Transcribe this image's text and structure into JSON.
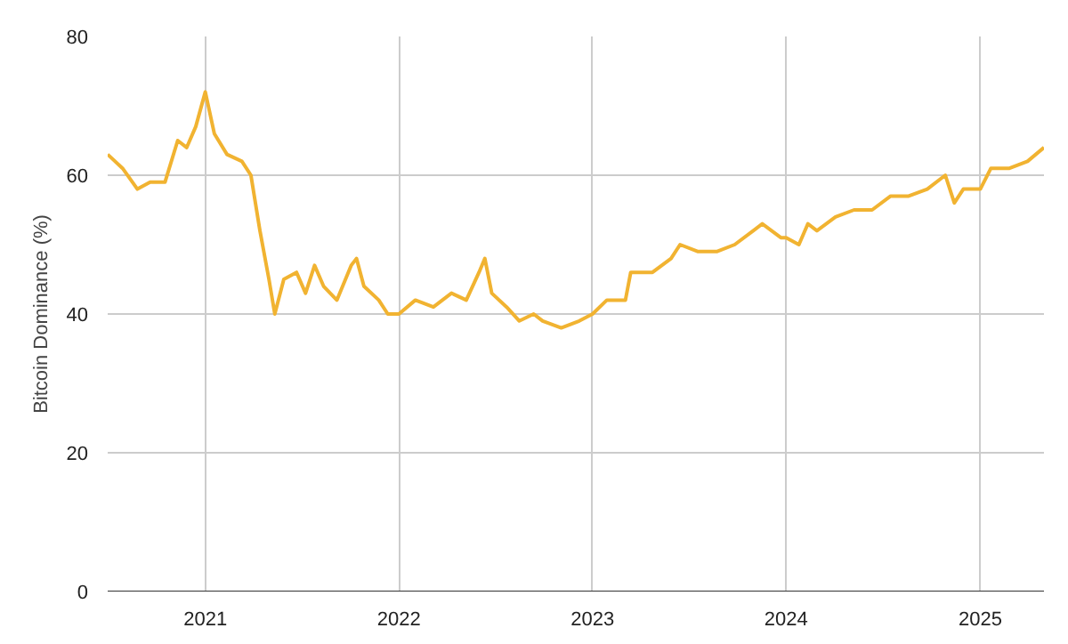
{
  "chart_data": {
    "type": "line",
    "ylabel": "Bitcoin Dominance (%)",
    "xlim": [
      "2020-07-01",
      "2025-05-01"
    ],
    "ylim": [
      0,
      80
    ],
    "yticks": [
      0,
      20,
      40,
      60,
      80
    ],
    "xticks": [
      {
        "value": "2021-01-01",
        "label": "2021"
      },
      {
        "value": "2022-01-01",
        "label": "2022"
      },
      {
        "value": "2023-01-01",
        "label": "2023"
      },
      {
        "value": "2024-01-01",
        "label": "2024"
      },
      {
        "value": "2025-01-01",
        "label": "2025"
      }
    ],
    "grid": true,
    "marker": "none",
    "line_style": "solid",
    "x": [
      "2020-07-01",
      "2020-07-29",
      "2020-08-26",
      "2020-09-19",
      "2020-10-17",
      "2020-11-10",
      "2020-11-27",
      "2020-12-14",
      "2021-01-01",
      "2021-01-18",
      "2021-02-11",
      "2021-03-11",
      "2021-03-28",
      "2021-04-14",
      "2021-05-01",
      "2021-05-12",
      "2021-05-29",
      "2021-06-22",
      "2021-07-09",
      "2021-07-26",
      "2021-08-12",
      "2021-09-06",
      "2021-10-03",
      "2021-10-13",
      "2021-10-27",
      "2021-11-24",
      "2021-12-11",
      "2022-01-01",
      "2022-02-01",
      "2022-03-07",
      "2022-04-10",
      "2022-05-08",
      "2022-06-01",
      "2022-06-12",
      "2022-06-25",
      "2022-07-23",
      "2022-08-16",
      "2022-09-12",
      "2022-09-29",
      "2022-11-03",
      "2022-12-07",
      "2023-01-01",
      "2023-01-28",
      "2023-03-04",
      "2023-03-14",
      "2023-04-24",
      "2023-05-29",
      "2023-06-15",
      "2023-07-19",
      "2023-08-23",
      "2023-09-26",
      "2023-10-31",
      "2023-11-17",
      "2023-12-22",
      "2024-01-01",
      "2024-01-25",
      "2024-02-11",
      "2024-02-28",
      "2024-04-03",
      "2024-05-08",
      "2024-06-11",
      "2024-07-16",
      "2024-08-19",
      "2024-09-23",
      "2024-10-27",
      "2024-11-13",
      "2024-11-30",
      "2025-01-01",
      "2025-01-21",
      "2025-02-25",
      "2025-03-31",
      "2025-05-01"
    ],
    "series": [
      {
        "color": "#f1b331",
        "values": [
          63,
          61,
          58,
          59,
          59,
          65,
          64,
          67,
          72,
          66,
          63,
          62,
          60,
          52,
          45,
          40,
          45,
          46,
          43,
          47,
          44,
          42,
          47,
          48,
          44,
          42,
          40,
          40,
          42,
          41,
          43,
          42,
          46,
          48,
          43,
          41,
          39,
          40,
          39,
          38,
          39,
          40,
          42,
          42,
          46,
          46,
          48,
          50,
          49,
          49,
          50,
          52,
          53,
          51,
          51,
          50,
          53,
          52,
          54,
          55,
          55,
          57,
          57,
          58,
          60,
          56,
          58,
          58,
          61,
          61,
          62,
          64
        ]
      }
    ]
  }
}
